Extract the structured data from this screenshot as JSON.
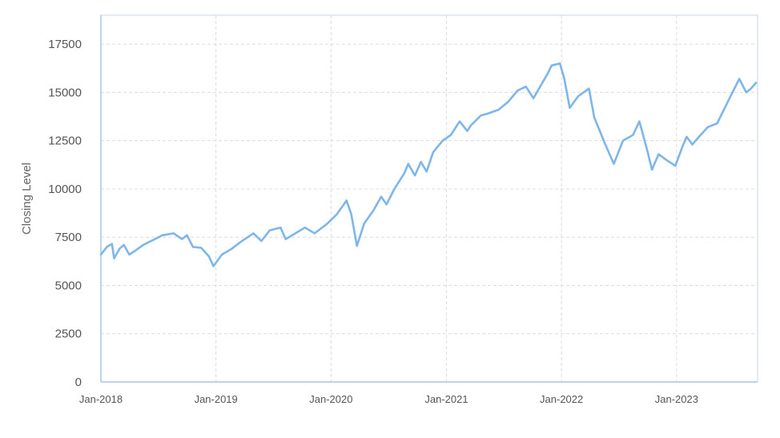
{
  "chart_data": {
    "type": "line",
    "title": "",
    "xlabel": "",
    "ylabel": "Closing Level",
    "xlim": [
      "2018-01-01",
      "2023-09-15"
    ],
    "ylim": [
      0,
      19000
    ],
    "grid": true,
    "legend": "none",
    "line_color": "#7eb6ea",
    "y_ticks": [
      0,
      2500,
      5000,
      7500,
      10000,
      12500,
      15000,
      17500
    ],
    "x_ticks": [
      {
        "date": "2018-01-01",
        "label": "Jan-2018"
      },
      {
        "date": "2019-01-01",
        "label": "Jan-2019"
      },
      {
        "date": "2020-01-01",
        "label": "Jan-2020"
      },
      {
        "date": "2021-01-01",
        "label": "Jan-2021"
      },
      {
        "date": "2022-01-01",
        "label": "Jan-2022"
      },
      {
        "date": "2023-01-01",
        "label": "Jan-2023"
      }
    ],
    "series": [
      {
        "x": [
          "2018-01-01",
          "2018-01-20",
          "2018-02-05",
          "2018-02-12",
          "2018-03-01",
          "2018-03-15",
          "2018-04-01",
          "2018-04-20",
          "2018-05-15",
          "2018-06-15",
          "2018-07-15",
          "2018-08-20",
          "2018-09-15",
          "2018-10-01",
          "2018-10-20",
          "2018-11-15",
          "2018-12-10",
          "2018-12-24",
          "2019-01-20",
          "2019-02-20",
          "2019-03-20",
          "2019-04-30",
          "2019-05-25",
          "2019-06-20",
          "2019-07-25",
          "2019-08-10",
          "2019-09-10",
          "2019-10-10",
          "2019-11-10",
          "2019-12-20",
          "2020-01-20",
          "2020-02-19",
          "2020-03-05",
          "2020-03-23",
          "2020-04-15",
          "2020-05-15",
          "2020-06-08",
          "2020-06-25",
          "2020-07-20",
          "2020-08-20",
          "2020-09-02",
          "2020-09-23",
          "2020-10-12",
          "2020-10-30",
          "2020-11-20",
          "2020-12-20",
          "2021-01-15",
          "2021-02-12",
          "2021-03-08",
          "2021-03-20",
          "2021-04-20",
          "2021-05-12",
          "2021-06-15",
          "2021-07-15",
          "2021-08-15",
          "2021-09-10",
          "2021-10-04",
          "2021-11-19",
          "2021-12-01",
          "2021-12-27",
          "2022-01-10",
          "2022-01-27",
          "2022-02-23",
          "2022-03-29",
          "2022-04-15",
          "2022-05-20",
          "2022-06-16",
          "2022-07-15",
          "2022-08-16",
          "2022-09-05",
          "2022-09-30",
          "2022-10-15",
          "2022-11-05",
          "2022-11-30",
          "2022-12-28",
          "2023-01-20",
          "2023-02-02",
          "2023-02-20",
          "2023-03-13",
          "2023-04-10",
          "2023-05-10",
          "2023-06-15",
          "2023-07-19",
          "2023-08-10",
          "2023-08-25",
          "2023-09-10"
        ],
        "values": [
          6600,
          7000,
          7150,
          6400,
          6900,
          7100,
          6600,
          6800,
          7100,
          7350,
          7600,
          7700,
          7400,
          7600,
          7000,
          6950,
          6500,
          6000,
          6600,
          6900,
          7250,
          7700,
          7300,
          7850,
          8000,
          7400,
          7700,
          8000,
          7700,
          8200,
          8700,
          9400,
          8700,
          7050,
          8200,
          8900,
          9600,
          9200,
          10000,
          10800,
          11300,
          10700,
          11400,
          10900,
          11900,
          12500,
          12800,
          13500,
          13000,
          13300,
          13800,
          13900,
          14100,
          14500,
          15100,
          15300,
          14700,
          16000,
          16400,
          16500,
          15700,
          14200,
          14800,
          15200,
          13700,
          12300,
          11300,
          12500,
          12800,
          13500,
          12000,
          11000,
          11800,
          11500,
          11200,
          12200,
          12700,
          12300,
          12700,
          13200,
          13400,
          14600,
          15700,
          15000,
          15200,
          15500
        ]
      }
    ]
  }
}
